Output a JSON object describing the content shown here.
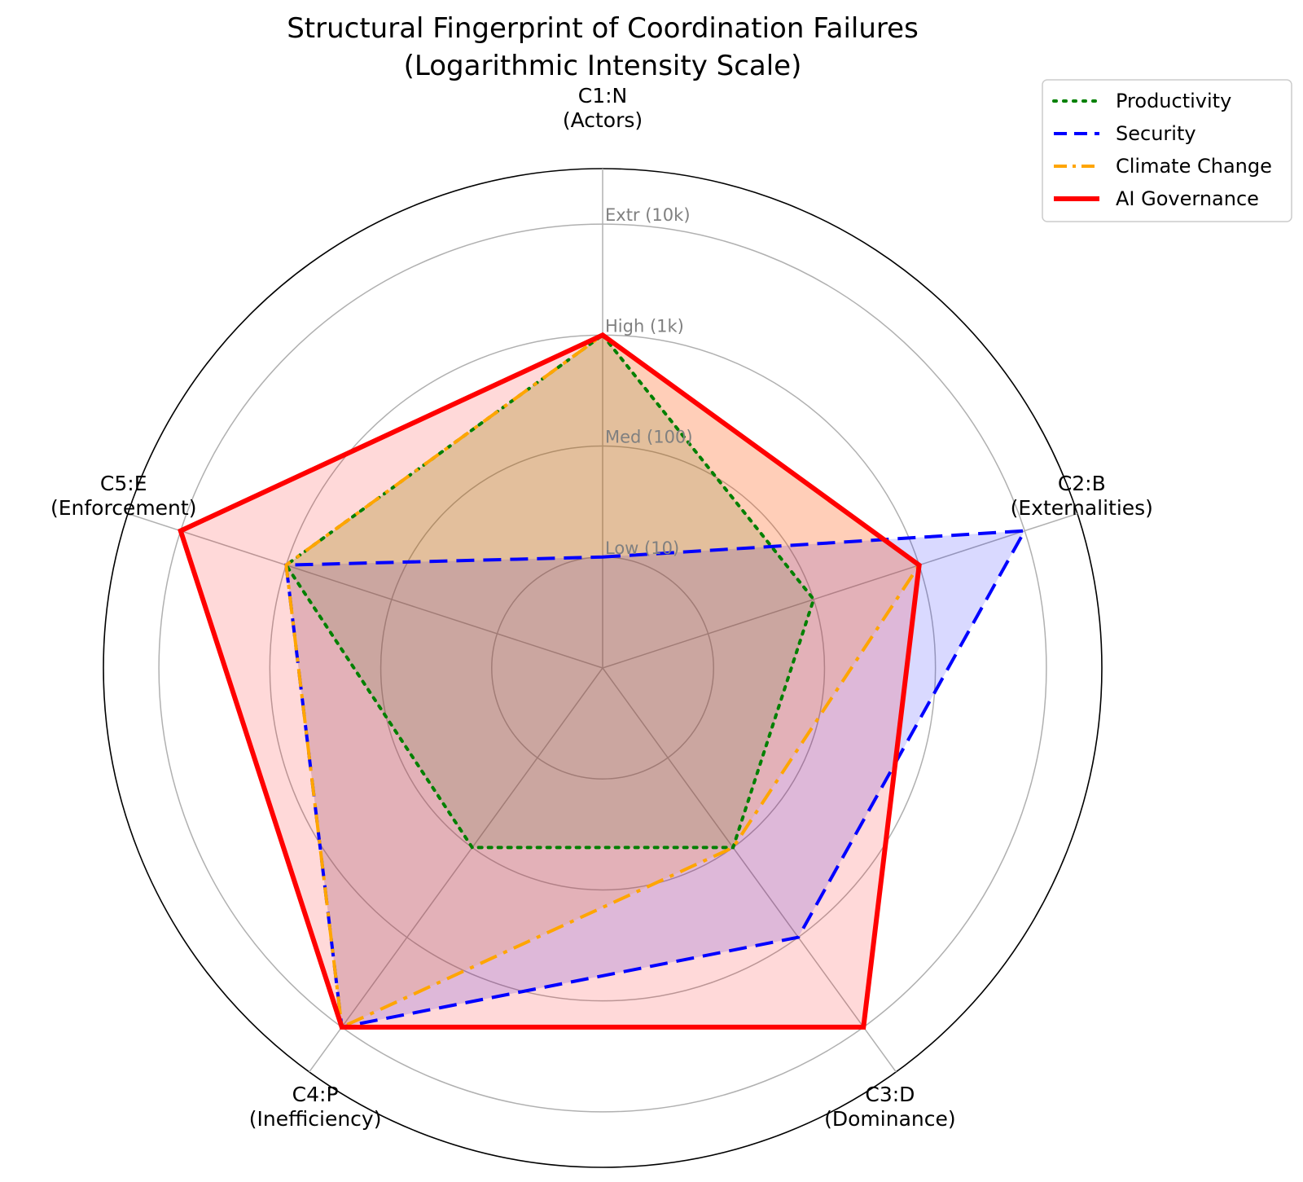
{
  "chart_data": {
    "type": "radar",
    "title": [
      "Structural Fingerprint of Coordination Failures",
      "(Logarithmic Intensity Scale)"
    ],
    "scale": "log",
    "rlim": [
      1,
      31623
    ],
    "grid": true,
    "legend_placement": "top-right",
    "axes": [
      {
        "key": "C1:N",
        "label": "C1:N",
        "sublabel": "(Actors)"
      },
      {
        "key": "C2:B",
        "label": "C2:B",
        "sublabel": "(Externalities)"
      },
      {
        "key": "C3:D",
        "label": "C3:D",
        "sublabel": "(Dominance)"
      },
      {
        "key": "C4:P",
        "label": "C4:P",
        "sublabel": "(Inefficiency)"
      },
      {
        "key": "C5:E",
        "label": "C5:E",
        "sublabel": "(Enforcement)"
      }
    ],
    "rings": [
      {
        "value": 10,
        "label": "Low (10)"
      },
      {
        "value": 100,
        "label": "Med (100)"
      },
      {
        "value": 1000,
        "label": "High (1k)"
      },
      {
        "value": 10000,
        "label": "Extr (10k)"
      }
    ],
    "series": [
      {
        "name": "Productivity",
        "values": [
          1000,
          100,
          100,
          100,
          1000
        ],
        "color": "#008000",
        "dash": "dotted",
        "fill": "#008000"
      },
      {
        "name": "Security",
        "values": [
          10,
          10000,
          1000,
          10000,
          1000
        ],
        "color": "#0000ff",
        "dash": "dashed",
        "fill": "#0000ff"
      },
      {
        "name": "Climate Change",
        "values": [
          1000,
          1000,
          100,
          10000,
          1000
        ],
        "color": "#ffa500",
        "dash": "dashdot",
        "fill": "#ffa500"
      },
      {
        "name": "AI Governance",
        "values": [
          1000,
          1000,
          10000,
          10000,
          10000
        ],
        "color": "#ff0000",
        "dash": "solid",
        "fill": "#ff0000"
      }
    ]
  }
}
